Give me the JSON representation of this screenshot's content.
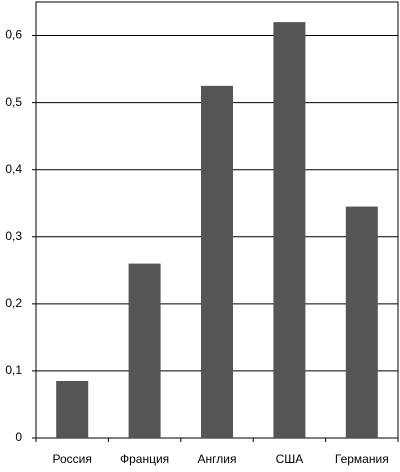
{
  "chart_data": {
    "type": "bar",
    "categories": [
      "Россия",
      "Франция",
      "Англия",
      "США",
      "Германия"
    ],
    "values": [
      0.085,
      0.26,
      0.525,
      0.62,
      0.345
    ],
    "color": "#555555",
    "ylim": [
      0,
      0.65
    ],
    "yticks": [
      0,
      {
        "value": 0.1,
        "label": "0,1"
      },
      {
        "value": 0.2,
        "label": "0,2"
      },
      {
        "value": 0.3,
        "label": "0,3"
      },
      {
        "value": 0.4,
        "label": "0,4"
      },
      {
        "value": 0.5,
        "label": "0,5"
      },
      {
        "value": 0.6,
        "label": "0,6"
      }
    ],
    "grid": true
  }
}
